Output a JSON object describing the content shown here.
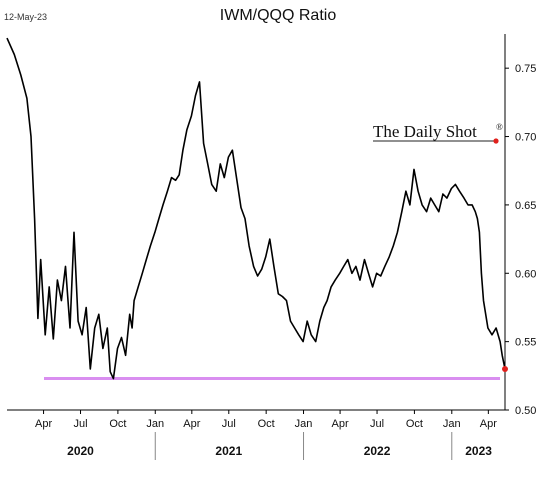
{
  "header": {
    "date": "12-May-23",
    "title": "IWM/QQQ Ratio",
    "brand": "The Daily Shot",
    "brand_mark": "®"
  },
  "colors": {
    "line": "#000000",
    "support_line": "#d98ef0",
    "last_point": "#e0201c",
    "brand_dot": "#e0201c"
  },
  "chart_data": {
    "type": "line",
    "title": "IWM/QQQ Ratio",
    "xlabel": "",
    "ylabel": "",
    "ylim": [
      0.5,
      0.775
    ],
    "yticks": [
      0.5,
      0.55,
      0.6,
      0.65,
      0.7,
      0.75
    ],
    "ytick_labels": [
      "0.50",
      "0.55",
      "0.60",
      "0.65",
      "0.70",
      "0.75"
    ],
    "xlim": [
      "2020-01-02",
      "2023-05-12"
    ],
    "month_ticks": [
      {
        "label": "Apr",
        "date": "2020-04-01"
      },
      {
        "label": "Jul",
        "date": "2020-07-01"
      },
      {
        "label": "Oct",
        "date": "2020-10-01"
      },
      {
        "label": "Jan",
        "date": "2021-01-01"
      },
      {
        "label": "Apr",
        "date": "2021-04-01"
      },
      {
        "label": "Jul",
        "date": "2021-07-01"
      },
      {
        "label": "Oct",
        "date": "2021-10-01"
      },
      {
        "label": "Jan",
        "date": "2022-01-01"
      },
      {
        "label": "Apr",
        "date": "2022-04-01"
      },
      {
        "label": "Jul",
        "date": "2022-07-01"
      },
      {
        "label": "Oct",
        "date": "2022-10-01"
      },
      {
        "label": "Jan",
        "date": "2023-01-01"
      },
      {
        "label": "Apr",
        "date": "2023-04-01"
      }
    ],
    "year_labels": [
      {
        "label": "2020",
        "date": "2020-07-01"
      },
      {
        "label": "2021",
        "date": "2021-07-01"
      },
      {
        "label": "2022",
        "date": "2022-07-01"
      },
      {
        "label": "2023",
        "date": "2023-03-08"
      }
    ],
    "year_separators": [
      "2021-01-01",
      "2022-01-01",
      "2023-01-01"
    ],
    "support_level": 0.523,
    "grid": false,
    "series": [
      {
        "x": [
          "2020-01-02",
          "2020-01-20",
          "2020-02-05",
          "2020-02-20",
          "2020-03-01",
          "2020-03-10",
          "2020-03-18",
          "2020-03-25",
          "2020-04-05",
          "2020-04-15",
          "2020-04-25",
          "2020-05-05",
          "2020-05-15",
          "2020-05-25",
          "2020-06-05",
          "2020-06-15",
          "2020-06-25",
          "2020-07-05",
          "2020-07-15",
          "2020-07-25",
          "2020-08-05",
          "2020-08-15",
          "2020-08-25",
          "2020-09-05",
          "2020-09-12",
          "2020-09-20",
          "2020-09-30",
          "2020-10-10",
          "2020-10-20",
          "2020-10-30",
          "2020-11-05",
          "2020-11-10",
          "2020-11-20",
          "2020-11-30",
          "2020-12-10",
          "2020-12-20",
          "2020-12-31",
          "2021-01-10",
          "2021-01-20",
          "2021-01-31",
          "2021-02-10",
          "2021-02-20",
          "2021-03-01",
          "2021-03-10",
          "2021-03-20",
          "2021-03-31",
          "2021-04-10",
          "2021-04-20",
          "2021-04-30",
          "2021-05-10",
          "2021-05-20",
          "2021-05-31",
          "2021-06-10",
          "2021-06-20",
          "2021-06-30",
          "2021-07-10",
          "2021-07-20",
          "2021-07-31",
          "2021-08-10",
          "2021-08-20",
          "2021-08-31",
          "2021-09-10",
          "2021-09-20",
          "2021-09-30",
          "2021-10-10",
          "2021-10-20",
          "2021-10-31",
          "2021-11-10",
          "2021-11-20",
          "2021-11-30",
          "2021-12-10",
          "2021-12-20",
          "2021-12-31",
          "2022-01-10",
          "2022-01-20",
          "2022-01-31",
          "2022-02-10",
          "2022-02-20",
          "2022-02-28",
          "2022-03-10",
          "2022-03-20",
          "2022-03-31",
          "2022-04-10",
          "2022-04-20",
          "2022-04-30",
          "2022-05-10",
          "2022-05-20",
          "2022-05-31",
          "2022-06-10",
          "2022-06-20",
          "2022-06-30",
          "2022-07-10",
          "2022-07-20",
          "2022-07-31",
          "2022-08-10",
          "2022-08-20",
          "2022-08-31",
          "2022-09-10",
          "2022-09-20",
          "2022-09-30",
          "2022-10-10",
          "2022-10-20",
          "2022-10-31",
          "2022-11-10",
          "2022-11-20",
          "2022-11-30",
          "2022-12-10",
          "2022-12-20",
          "2022-12-31",
          "2023-01-10",
          "2023-01-20",
          "2023-01-31",
          "2023-02-10",
          "2023-02-20",
          "2023-02-28",
          "2023-03-05",
          "2023-03-10",
          "2023-03-15",
          "2023-03-20",
          "2023-03-31",
          "2023-04-10",
          "2023-04-20",
          "2023-04-30",
          "2023-05-05",
          "2023-05-12"
        ],
        "y": [
          0.772,
          0.76,
          0.745,
          0.728,
          0.7,
          0.64,
          0.567,
          0.61,
          0.555,
          0.59,
          0.552,
          0.595,
          0.58,
          0.605,
          0.56,
          0.63,
          0.565,
          0.555,
          0.575,
          0.53,
          0.56,
          0.57,
          0.545,
          0.56,
          0.528,
          0.523,
          0.545,
          0.553,
          0.54,
          0.57,
          0.56,
          0.58,
          0.59,
          0.6,
          0.61,
          0.62,
          0.63,
          0.64,
          0.65,
          0.66,
          0.67,
          0.668,
          0.672,
          0.69,
          0.705,
          0.715,
          0.73,
          0.74,
          0.695,
          0.68,
          0.665,
          0.66,
          0.68,
          0.67,
          0.685,
          0.69,
          0.67,
          0.648,
          0.64,
          0.62,
          0.605,
          0.598,
          0.603,
          0.612,
          0.625,
          0.605,
          0.585,
          0.583,
          0.58,
          0.565,
          0.56,
          0.555,
          0.55,
          0.565,
          0.555,
          0.55,
          0.565,
          0.575,
          0.58,
          0.59,
          0.595,
          0.6,
          0.605,
          0.61,
          0.6,
          0.605,
          0.595,
          0.61,
          0.6,
          0.59,
          0.6,
          0.598,
          0.605,
          0.612,
          0.62,
          0.63,
          0.645,
          0.66,
          0.65,
          0.676,
          0.66,
          0.65,
          0.645,
          0.655,
          0.65,
          0.645,
          0.658,
          0.655,
          0.662,
          0.665,
          0.66,
          0.655,
          0.65,
          0.65,
          0.645,
          0.64,
          0.63,
          0.6,
          0.58,
          0.56,
          0.555,
          0.56,
          0.55,
          0.54,
          0.53
        ]
      }
    ]
  }
}
